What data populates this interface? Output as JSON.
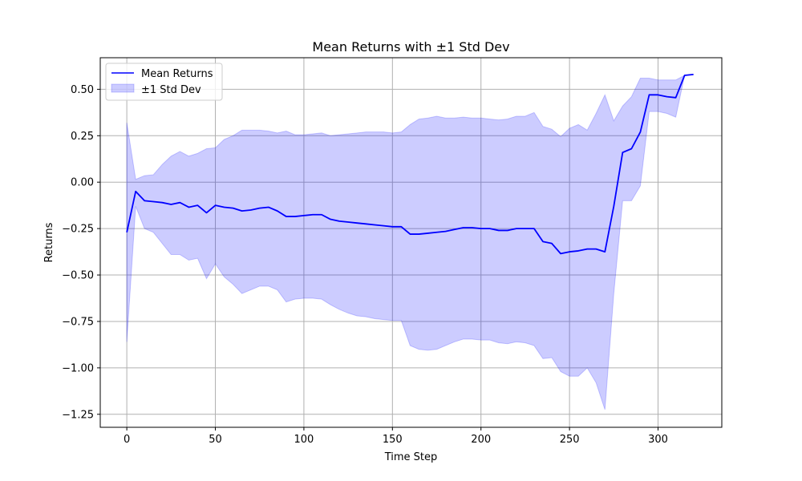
{
  "chart_data": {
    "type": "line",
    "title": "Mean Returns with ±1 Std Dev",
    "xlabel": "Time Step",
    "ylabel": "Returns",
    "xlim": [
      -15,
      336
    ],
    "ylim": [
      -1.32,
      0.67
    ],
    "xticks": [
      0,
      50,
      100,
      150,
      200,
      250,
      300
    ],
    "yticks": [
      -1.25,
      -1.0,
      -0.75,
      -0.5,
      -0.25,
      0.0,
      0.25,
      0.5
    ],
    "xtick_labels": [
      "0",
      "50",
      "100",
      "150",
      "200",
      "250",
      "300"
    ],
    "ytick_labels": [
      "−1.25",
      "−1.00",
      "−0.75",
      "−0.50",
      "−0.25",
      "0.00",
      "0.25",
      "0.50"
    ],
    "grid": true,
    "legend_position": "top-left",
    "series": [
      {
        "name": "Mean Returns",
        "kind": "line",
        "color": "#0000ff",
        "x": [
          0,
          5,
          10,
          15,
          20,
          25,
          30,
          35,
          40,
          45,
          50,
          55,
          60,
          65,
          70,
          75,
          80,
          85,
          90,
          95,
          100,
          105,
          110,
          115,
          120,
          125,
          130,
          135,
          140,
          145,
          150,
          155,
          160,
          165,
          170,
          175,
          180,
          185,
          190,
          195,
          200,
          205,
          210,
          215,
          220,
          225,
          230,
          235,
          240,
          245,
          250,
          255,
          260,
          265,
          270,
          275,
          280,
          285,
          290,
          295,
          300,
          305,
          310,
          315,
          320
        ],
        "y": [
          -0.27,
          -0.05,
          -0.1,
          -0.105,
          -0.11,
          -0.12,
          -0.11,
          -0.135,
          -0.125,
          -0.165,
          -0.125,
          -0.135,
          -0.14,
          -0.155,
          -0.15,
          -0.14,
          -0.135,
          -0.155,
          -0.185,
          -0.185,
          -0.18,
          -0.175,
          -0.175,
          -0.2,
          -0.21,
          -0.215,
          -0.22,
          -0.225,
          -0.23,
          -0.235,
          -0.24,
          -0.24,
          -0.28,
          -0.28,
          -0.275,
          -0.27,
          -0.265,
          -0.255,
          -0.245,
          -0.245,
          -0.25,
          -0.25,
          -0.26,
          -0.26,
          -0.25,
          -0.25,
          -0.25,
          -0.32,
          -0.33,
          -0.385,
          -0.375,
          -0.37,
          -0.36,
          -0.36,
          -0.375,
          -0.13,
          0.16,
          0.18,
          0.27,
          0.47,
          0.47,
          0.46,
          0.455,
          0.575,
          0.58
        ]
      },
      {
        "name": "±1 Std Dev",
        "kind": "band",
        "color": "#0000ff",
        "alpha": 0.2,
        "x": [
          0,
          5,
          10,
          15,
          20,
          25,
          30,
          35,
          40,
          45,
          50,
          55,
          60,
          65,
          70,
          75,
          80,
          85,
          90,
          95,
          100,
          105,
          110,
          115,
          120,
          125,
          130,
          135,
          140,
          145,
          150,
          155,
          160,
          165,
          170,
          175,
          180,
          185,
          190,
          195,
          200,
          205,
          210,
          215,
          220,
          225,
          230,
          235,
          240,
          245,
          250,
          255,
          260,
          265,
          270,
          275,
          280,
          285,
          290,
          295,
          300,
          305,
          310,
          315,
          320
        ],
        "lower": [
          -0.86,
          -0.13,
          -0.25,
          -0.27,
          -0.33,
          -0.39,
          -0.39,
          -0.42,
          -0.41,
          -0.52,
          -0.44,
          -0.51,
          -0.55,
          -0.6,
          -0.58,
          -0.56,
          -0.56,
          -0.58,
          -0.645,
          -0.63,
          -0.625,
          -0.625,
          -0.63,
          -0.66,
          -0.685,
          -0.705,
          -0.72,
          -0.725,
          -0.735,
          -0.74,
          -0.745,
          -0.745,
          -0.88,
          -0.9,
          -0.905,
          -0.9,
          -0.88,
          -0.86,
          -0.845,
          -0.845,
          -0.85,
          -0.85,
          -0.865,
          -0.87,
          -0.86,
          -0.865,
          -0.88,
          -0.95,
          -0.945,
          -1.02,
          -1.045,
          -1.045,
          -1.0,
          -1.08,
          -1.225,
          -0.6,
          -0.1,
          -0.1,
          -0.02,
          0.38,
          0.38,
          0.37,
          0.35,
          0.575,
          0.58
        ],
        "upper": [
          0.32,
          0.015,
          0.035,
          0.04,
          0.095,
          0.14,
          0.165,
          0.14,
          0.155,
          0.18,
          0.185,
          0.23,
          0.25,
          0.28,
          0.28,
          0.28,
          0.275,
          0.265,
          0.275,
          0.255,
          0.255,
          0.26,
          0.265,
          0.25,
          0.255,
          0.26,
          0.265,
          0.27,
          0.27,
          0.27,
          0.265,
          0.27,
          0.31,
          0.34,
          0.345,
          0.355,
          0.345,
          0.345,
          0.35,
          0.345,
          0.345,
          0.34,
          0.335,
          0.34,
          0.355,
          0.355,
          0.375,
          0.3,
          0.285,
          0.245,
          0.29,
          0.31,
          0.28,
          0.37,
          0.47,
          0.33,
          0.41,
          0.46,
          0.56,
          0.56,
          0.55,
          0.55,
          0.55,
          0.575,
          0.58
        ]
      }
    ]
  }
}
